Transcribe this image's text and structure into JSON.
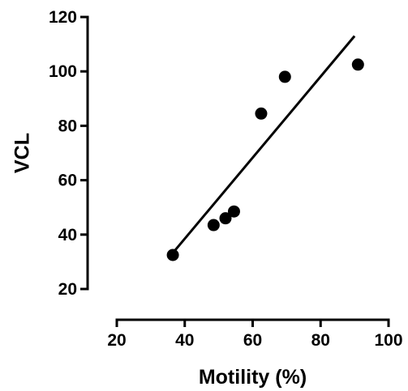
{
  "chart_data": {
    "type": "scatter",
    "xlabel": "Motility (%)",
    "ylabel": "VCL",
    "xlim": [
      20,
      100
    ],
    "ylim": [
      20,
      120
    ],
    "xticks": [
      20,
      40,
      60,
      80,
      100
    ],
    "yticks": [
      20,
      40,
      60,
      80,
      100,
      120
    ],
    "grid": false,
    "series": [
      {
        "points": [
          {
            "x": 36.5,
            "y": 32.5
          },
          {
            "x": 48.5,
            "y": 43.5
          },
          {
            "x": 52,
            "y": 46
          },
          {
            "x": 54.5,
            "y": 48.5
          },
          {
            "x": 62.5,
            "y": 84.5
          },
          {
            "x": 69.5,
            "y": 98
          },
          {
            "x": 91,
            "y": 102.5
          }
        ],
        "color": "#000000"
      }
    ],
    "fit_line": {
      "x": [
        37,
        90
      ],
      "y": [
        34,
        113
      ],
      "color": "#000000"
    }
  }
}
